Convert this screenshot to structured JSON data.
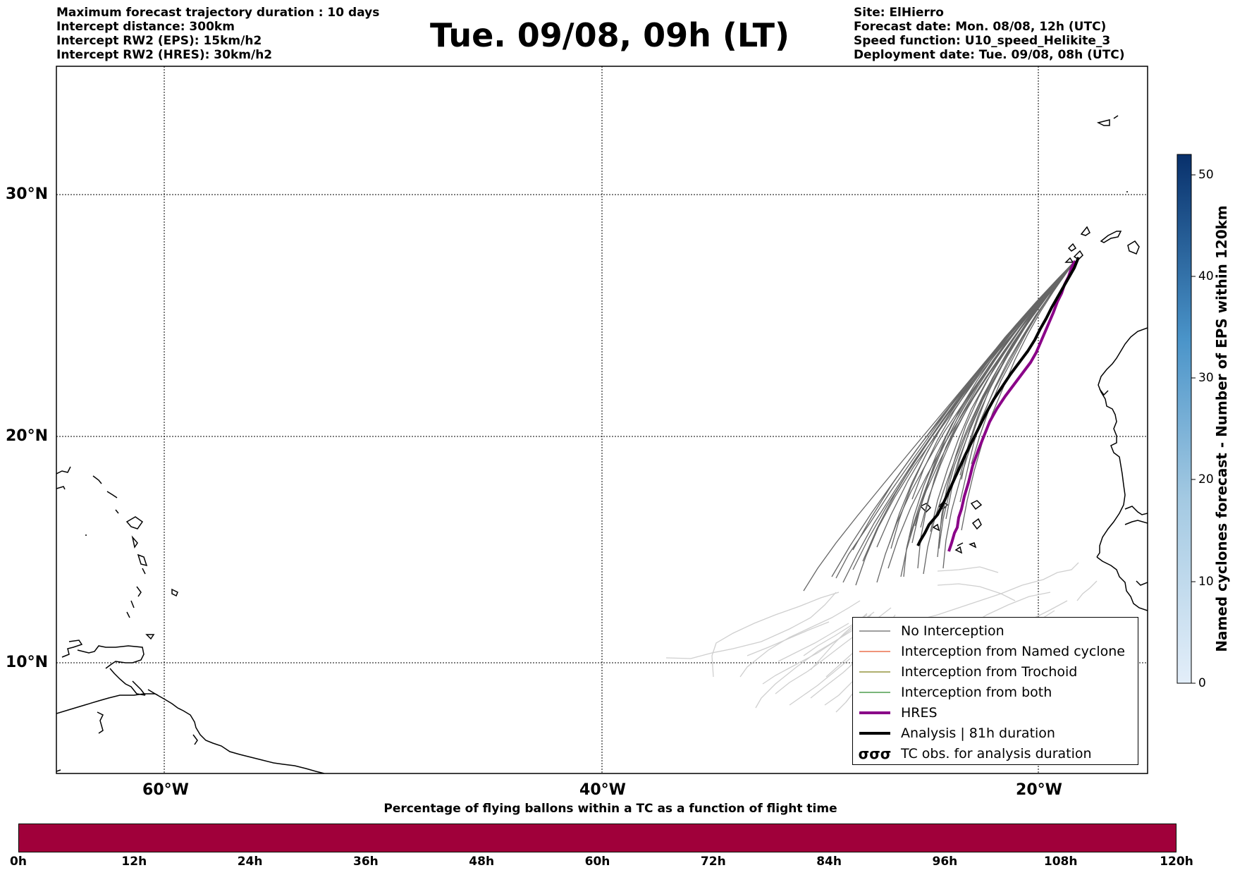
{
  "header": {
    "left_lines": [
      "Maximum forecast trajectory duration : 10 days",
      "Intercept distance: 300km",
      "Intercept RW2 (EPS):  15km/h2",
      "Intercept RW2 (HRES): 30km/h2"
    ],
    "title": "Tue. 09/08, 09h (LT)",
    "right_lines": [
      "Site: ElHierro",
      "Forecast date: Mon. 08/08, 12h (UTC)",
      "Speed function: U10_speed_Helikite_3",
      "Deployment date: Tue. 09/08, 08h (UTC)"
    ]
  },
  "map": {
    "lon_range": [
      -65,
      15
    ],
    "lat_range": [
      5,
      35
    ],
    "lat_labels": [
      "30°N",
      "20°N",
      "10°N"
    ],
    "lon_labels": [
      "60°W",
      "40°W",
      "20°W"
    ],
    "gridlines": "dotted",
    "launch_site": "ElHierro"
  },
  "legend": {
    "items": [
      {
        "label": "No Interception",
        "color": "#666666",
        "style": "thin-line"
      },
      {
        "label": "Interception from Named cyclone",
        "color": "#e8542a",
        "style": "thin-line"
      },
      {
        "label": "Interception from Trochoid",
        "color": "#808018",
        "style": "thin-line"
      },
      {
        "label": "Interception from both",
        "color": "#2a8a2a",
        "style": "thin-line"
      },
      {
        "label": "HRES",
        "color": "#8a0088",
        "style": "thick-line"
      },
      {
        "label": "Analysis | 81h duration",
        "color": "#000000",
        "style": "thick-line"
      },
      {
        "label": "TC obs. for analysis duration",
        "color": "#000000",
        "style": "cyclone-symbols",
        "symbol": "σσσ"
      }
    ]
  },
  "percentage_bar": {
    "title": "Percentage of flying ballons within a TC as a function of flight time",
    "ticks": [
      "0h",
      "12h",
      "24h",
      "36h",
      "48h",
      "60h",
      "72h",
      "84h",
      "96h",
      "108h",
      "120h"
    ],
    "fill_color": "#a0003a"
  },
  "colorbar": {
    "title": "Named cyclones forecast - Number of EPS within 120km",
    "ticks": [
      "0",
      "10",
      "20",
      "30",
      "40",
      "50"
    ],
    "range": [
      0,
      52
    ],
    "color_low": "#e3eef9",
    "color_high": "#08306b"
  }
}
